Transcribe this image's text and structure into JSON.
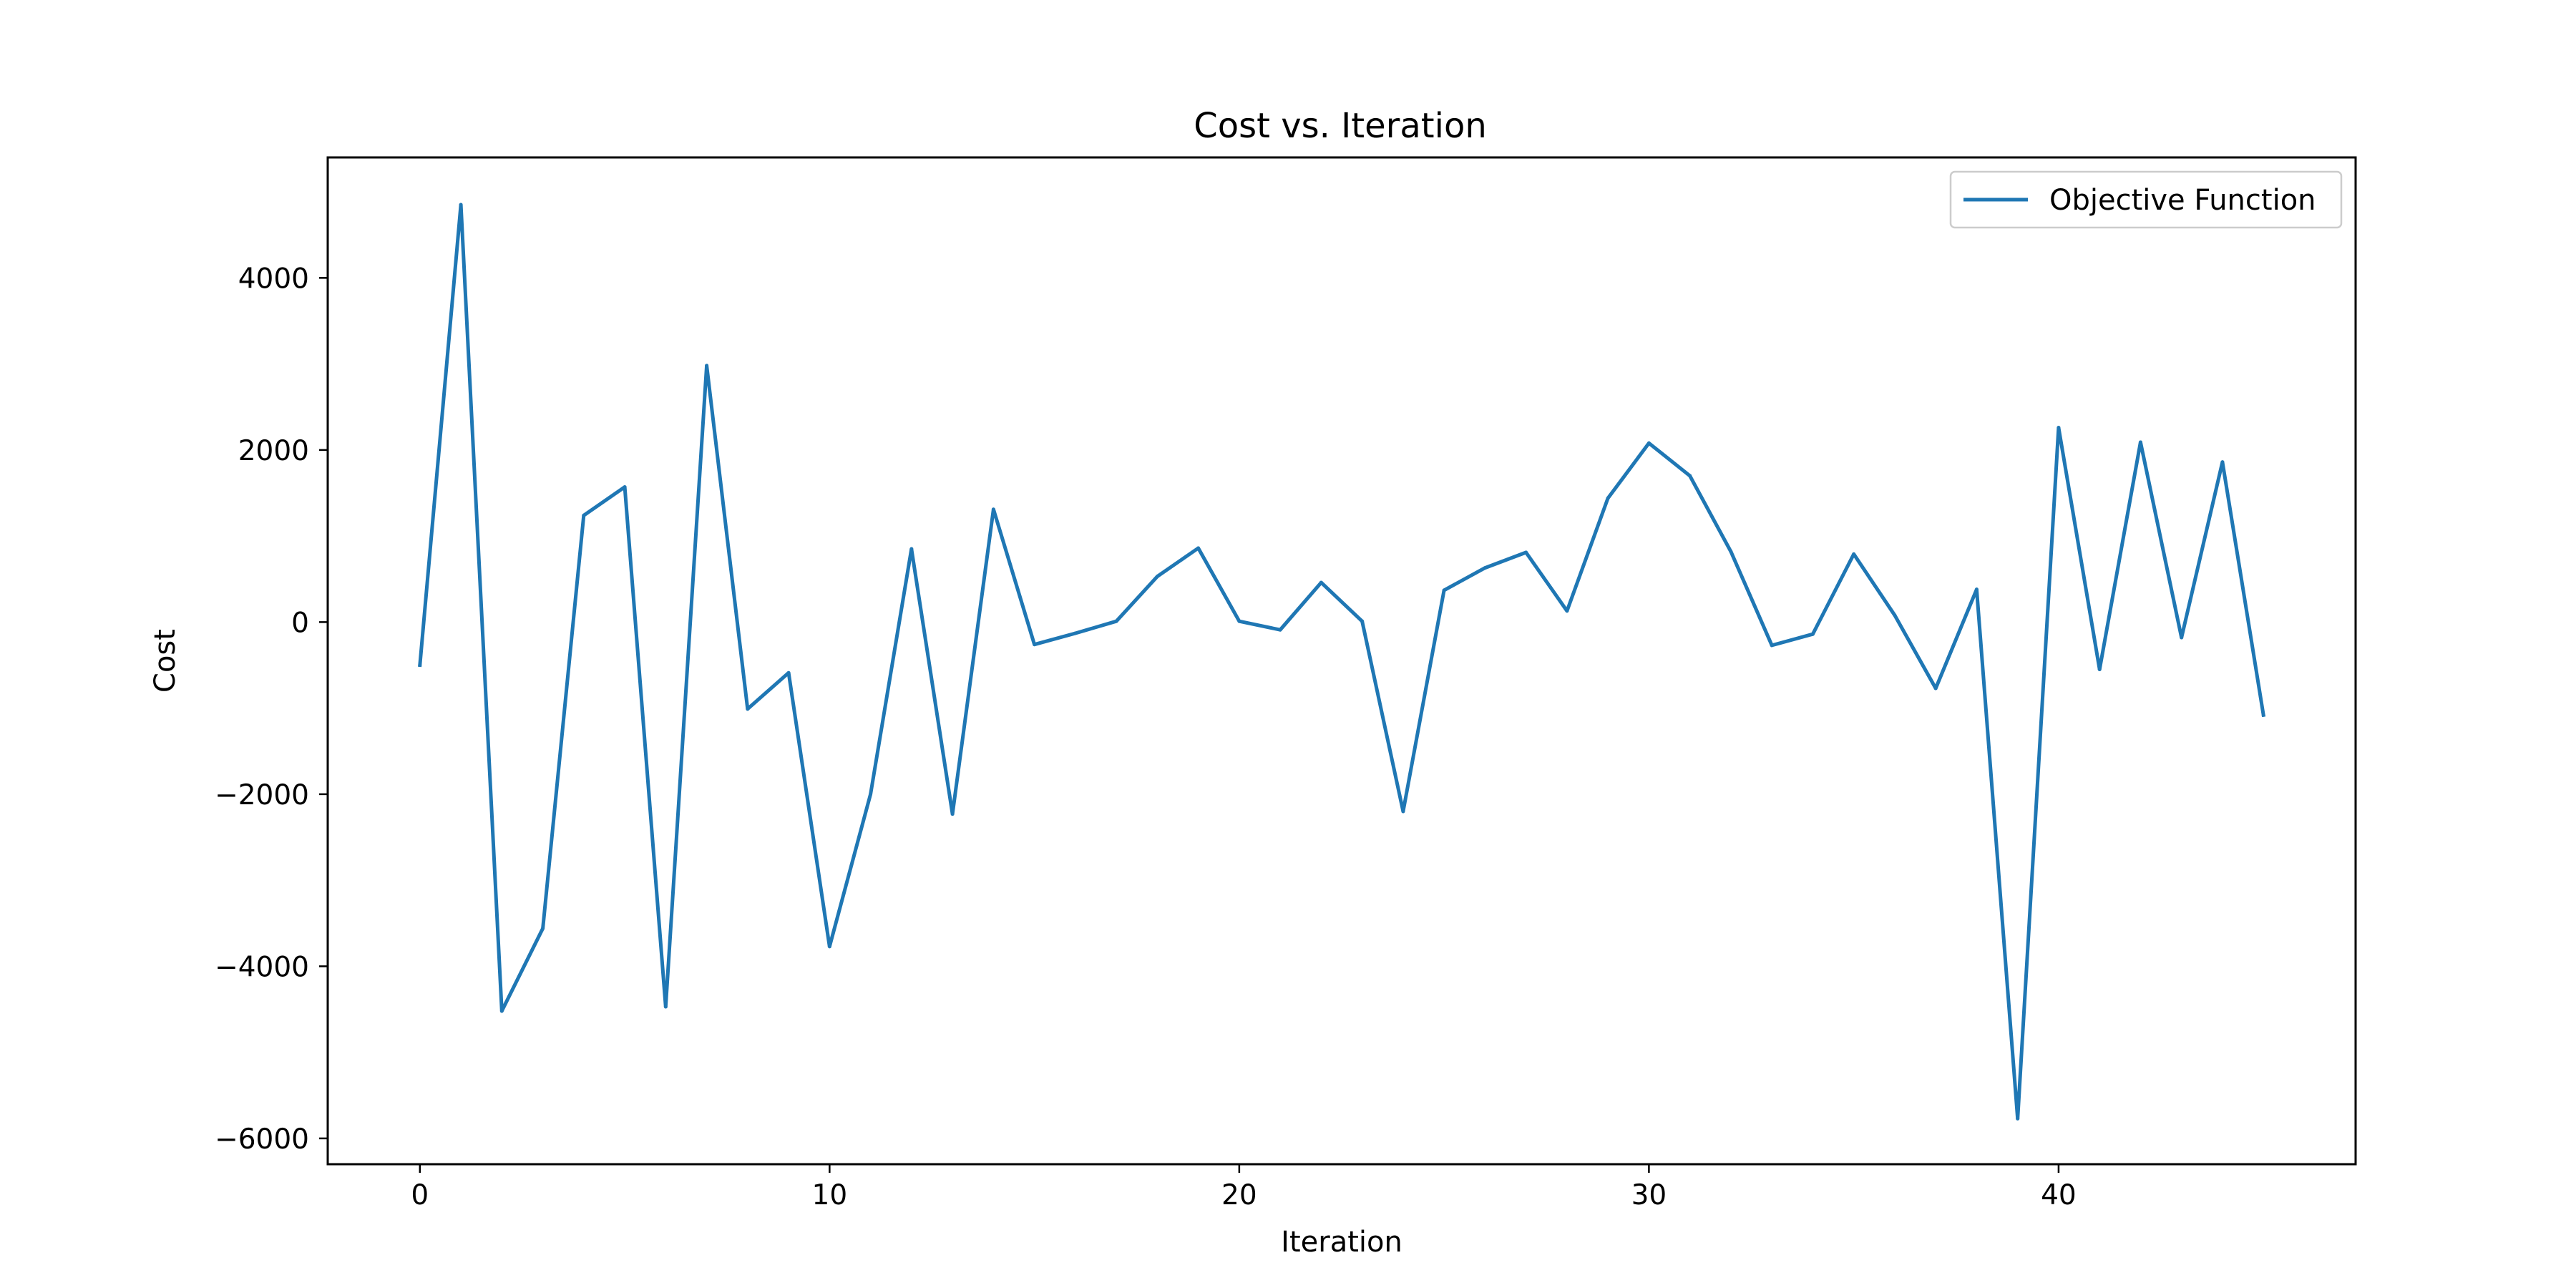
{
  "chart_data": {
    "type": "line",
    "title": "Cost vs. Iteration",
    "xlabel": "Iteration",
    "ylabel": "Cost",
    "xlim": [
      -2.25,
      47.25
    ],
    "ylim": [
      -6300,
      5400
    ],
    "xticks": [
      0,
      10,
      20,
      30,
      40
    ],
    "xtick_labels": [
      "0",
      "10",
      "20",
      "30",
      "40"
    ],
    "yticks": [
      -6000,
      -4000,
      -2000,
      0,
      2000,
      4000
    ],
    "ytick_labels": [
      "−6000",
      "−4000",
      "−2000",
      "0",
      "2000",
      "4000"
    ],
    "grid": false,
    "legend": "top-right",
    "series": [
      {
        "name": "Objective Function",
        "color": "#1f77b4",
        "x": [
          0,
          1,
          2,
          3,
          4,
          5,
          6,
          7,
          8,
          9,
          10,
          11,
          12,
          13,
          14,
          15,
          16,
          17,
          18,
          19,
          20,
          21,
          22,
          23,
          24,
          25,
          26,
          27,
          28,
          29,
          30,
          31,
          32,
          33,
          34,
          35,
          36,
          37,
          38,
          39,
          40,
          41,
          42,
          43,
          44,
          45
        ],
        "values": [
          -500,
          4850,
          -4520,
          -3560,
          1240,
          1570,
          -4470,
          2980,
          -1010,
          -590,
          -3770,
          -2000,
          850,
          -2230,
          1310,
          -260,
          -130,
          10,
          530,
          860,
          10,
          -90,
          460,
          10,
          -2200,
          370,
          630,
          810,
          130,
          1440,
          2080,
          1700,
          820,
          -270,
          -140,
          790,
          80,
          -770,
          380,
          -5770,
          2260,
          -550,
          2090,
          -180,
          1860,
          -1080
        ]
      }
    ]
  }
}
